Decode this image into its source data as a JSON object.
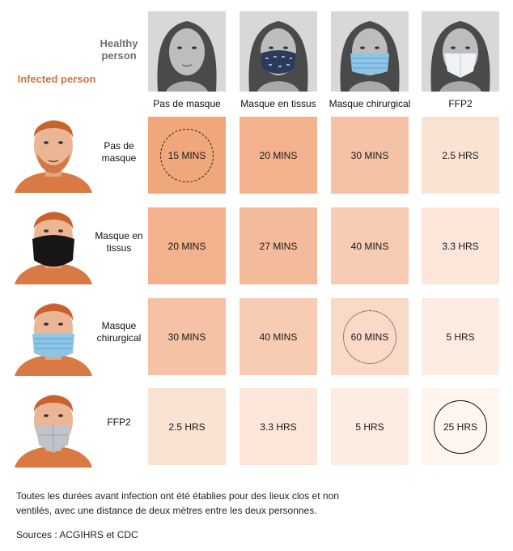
{
  "labels": {
    "healthy": "Healthy person",
    "infected": "Infected person"
  },
  "chart_data": {
    "type": "table",
    "columns": [
      "Pas de masque",
      "Masque en tissus",
      "Masque chirurgical",
      "FFP2"
    ],
    "rows": [
      "Pas de masque",
      "Masque en tissus",
      "Masque chirurgical",
      "FFP2"
    ],
    "values": [
      [
        "15 MINS",
        "20 MINS",
        "30 MINS",
        "2.5 HRS"
      ],
      [
        "20 MINS",
        "27 MINS",
        "40 MINS",
        "3.3 HRS"
      ],
      [
        "30 MINS",
        "40 MINS",
        "60 MINS",
        "5 HRS"
      ],
      [
        "2.5 HRS",
        "3.3 HRS",
        "5 HRS",
        "25 HRS"
      ]
    ],
    "cell_colors": [
      [
        "#f0a77c",
        "#f3b28d",
        "#f5c2a5",
        "#fbe3d4"
      ],
      [
        "#f3b28d",
        "#f4bb9b",
        "#f7ccb3",
        "#fbe6d9"
      ],
      [
        "#f5c2a5",
        "#f7ccb3",
        "#f9d9c7",
        "#fcece2"
      ],
      [
        "#fbe3d4",
        "#fbe6d9",
        "#fcece2",
        "#fef5ef"
      ]
    ],
    "highlights": [
      {
        "row": 0,
        "col": 0,
        "style": "dashed"
      },
      {
        "row": 2,
        "col": 2,
        "style": "dotted"
      },
      {
        "row": 3,
        "col": 3,
        "style": "solid"
      }
    ]
  },
  "icons": {
    "healthy_faces": [
      "healthy-no-mask-face-icon",
      "healthy-cloth-mask-face-icon",
      "healthy-surgical-mask-face-icon",
      "healthy-ffp2-face-icon"
    ],
    "infected_faces": [
      "infected-no-mask-face-icon",
      "infected-cloth-mask-face-icon",
      "infected-surgical-mask-face-icon",
      "infected-ffp2-face-icon"
    ]
  },
  "colors": {
    "infected_accent": "#d4733e",
    "healthy_accent": "#707070"
  },
  "footnote": "Toutes les durées avant infection ont été établies pour des lieux clos et non ventilés, avec une distance de deux mètres entre les deux personnes.",
  "sources": "Sources : ACGIHRS et CDC"
}
